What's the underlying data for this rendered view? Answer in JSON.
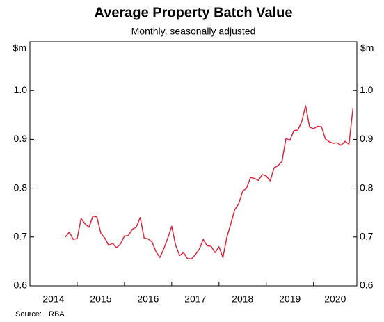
{
  "chart_data": {
    "type": "line",
    "title": "Average Property Batch Value",
    "subtitle": "Monthly, seasonally adjusted",
    "y_unit": "$m",
    "source_label": "Source:",
    "source": "RBA",
    "year_labels": [
      "2014",
      "2015",
      "2016",
      "2017",
      "2018",
      "2019",
      "2020"
    ],
    "xlim": [
      2014,
      2020.917
    ],
    "xticks": [
      2015,
      2016,
      2017,
      2018,
      2019,
      2020
    ],
    "ylim": [
      0.6,
      1.1
    ],
    "yticks": [
      0.6,
      0.7,
      0.8,
      0.9,
      {
        "value": 1,
        "label": "1.0"
      }
    ],
    "x": [
      2014.75,
      2014.833,
      2014.917,
      2015,
      2015.083,
      2015.167,
      2015.25,
      2015.333,
      2015.417,
      2015.5,
      2015.583,
      2015.667,
      2015.75,
      2015.833,
      2015.917,
      2016,
      2016.083,
      2016.167,
      2016.25,
      2016.333,
      2016.417,
      2016.5,
      2016.583,
      2016.667,
      2016.75,
      2016.833,
      2016.917,
      2017,
      2017.083,
      2017.167,
      2017.25,
      2017.333,
      2017.417,
      2017.5,
      2017.583,
      2017.667,
      2017.75,
      2017.833,
      2017.917,
      2018,
      2018.083,
      2018.167,
      2018.25,
      2018.333,
      2018.417,
      2018.5,
      2018.583,
      2018.667,
      2018.75,
      2018.833,
      2018.917,
      2019,
      2019.083,
      2019.167,
      2019.25,
      2019.333,
      2019.417,
      2019.5,
      2019.583,
      2019.667,
      2019.75,
      2019.833,
      2019.917,
      2020,
      2020.083,
      2020.167,
      2020.25,
      2020.333,
      2020.417,
      2020.5,
      2020.583,
      2020.667,
      2020.75,
      2020.833
    ],
    "series": [
      {
        "name": "Average Property Batch Value",
        "color": "#e0233b",
        "values": [
          0.7,
          0.71,
          0.695,
          0.697,
          0.738,
          0.727,
          0.72,
          0.743,
          0.741,
          0.708,
          0.698,
          0.683,
          0.687,
          0.678,
          0.686,
          0.702,
          0.703,
          0.716,
          0.72,
          0.74,
          0.698,
          0.696,
          0.69,
          0.67,
          0.658,
          0.676,
          0.698,
          0.722,
          0.683,
          0.662,
          0.668,
          0.656,
          0.655,
          0.664,
          0.675,
          0.695,
          0.682,
          0.681,
          0.668,
          0.68,
          0.658,
          0.7,
          0.727,
          0.756,
          0.768,
          0.794,
          0.8,
          0.822,
          0.82,
          0.816,
          0.828,
          0.825,
          0.815,
          0.842,
          0.846,
          0.855,
          0.902,
          0.898,
          0.918,
          0.919,
          0.936,
          0.969,
          0.925,
          0.922,
          0.927,
          0.926,
          0.901,
          0.895,
          0.892,
          0.893,
          0.888,
          0.896,
          0.89,
          0.963
        ]
      }
    ]
  }
}
